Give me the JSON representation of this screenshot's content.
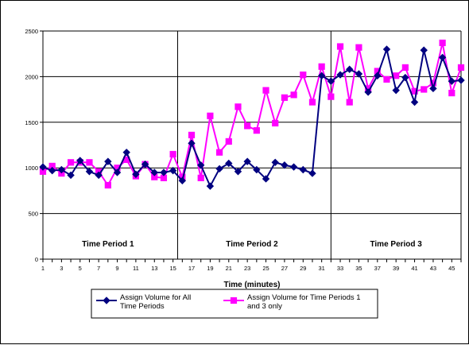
{
  "chart_data": {
    "type": "line",
    "xlabel": "Time (minutes)",
    "ylabel": "",
    "ylim": [
      0,
      2500
    ],
    "xlim": [
      1,
      46
    ],
    "yticks": [
      0,
      500,
      1000,
      1500,
      2000,
      2500
    ],
    "xticks": [
      1,
      3,
      5,
      7,
      9,
      11,
      13,
      15,
      17,
      19,
      21,
      23,
      25,
      27,
      29,
      31,
      33,
      35,
      37,
      39,
      41,
      43,
      45
    ],
    "grid": "horizontal",
    "period_dividers": [
      15.5,
      32
    ],
    "period_labels": [
      {
        "text": "Time Period 1",
        "x": 8
      },
      {
        "text": "Time Period 2",
        "x": 23.5
      },
      {
        "text": "Time Period 3",
        "x": 39
      }
    ],
    "series": [
      {
        "name": "Assign Volume for All Time Periods",
        "color": "#000080",
        "marker": "diamond",
        "x": [
          1,
          2,
          3,
          4,
          5,
          6,
          7,
          8,
          9,
          10,
          11,
          12,
          13,
          14,
          15,
          16,
          17,
          18,
          19,
          20,
          21,
          22,
          23,
          24,
          25,
          26,
          27,
          28,
          29,
          30,
          31,
          32,
          33,
          34,
          35,
          36,
          37,
          38,
          39,
          40,
          41,
          42,
          43,
          44,
          45,
          46
        ],
        "values": [
          1010,
          970,
          980,
          920,
          1080,
          960,
          920,
          1070,
          950,
          1170,
          930,
          1040,
          950,
          950,
          970,
          860,
          1270,
          1030,
          800,
          990,
          1050,
          960,
          1070,
          980,
          880,
          1060,
          1030,
          1010,
          980,
          940,
          2010,
          1950,
          2020,
          2080,
          2030,
          1830,
          2010,
          2300,
          1850,
          1990,
          1720,
          2290,
          1870,
          2210,
          1950,
          1960
        ]
      },
      {
        "name": "Assign Volume for Time Periods 1 and 3 only",
        "color": "#FF00FF",
        "marker": "square",
        "x": [
          1,
          2,
          3,
          4,
          5,
          6,
          7,
          8,
          9,
          10,
          11,
          12,
          13,
          14,
          15,
          16,
          17,
          18,
          19,
          20,
          21,
          22,
          23,
          24,
          25,
          26,
          27,
          28,
          29,
          30,
          31,
          32,
          33,
          34,
          35,
          36,
          37,
          38,
          39,
          40,
          41,
          42,
          43,
          44,
          45,
          46
        ],
        "values": [
          960,
          1020,
          940,
          1060,
          1060,
          1060,
          960,
          810,
          1000,
          1090,
          910,
          1040,
          900,
          890,
          1150,
          900,
          1360,
          890,
          1570,
          1170,
          1290,
          1670,
          1460,
          1410,
          1850,
          1490,
          1770,
          1800,
          2020,
          1720,
          2110,
          1780,
          2330,
          1720,
          2320,
          1870,
          2060,
          1970,
          2010,
          2100,
          1840,
          1860,
          1930,
          2370,
          1820,
          2100
        ]
      }
    ],
    "legend": {
      "placement": "bottom-center",
      "entries": [
        "Assign Volume for All Time Periods",
        "Assign Volume for Time Periods 1 and 3 only"
      ]
    }
  }
}
